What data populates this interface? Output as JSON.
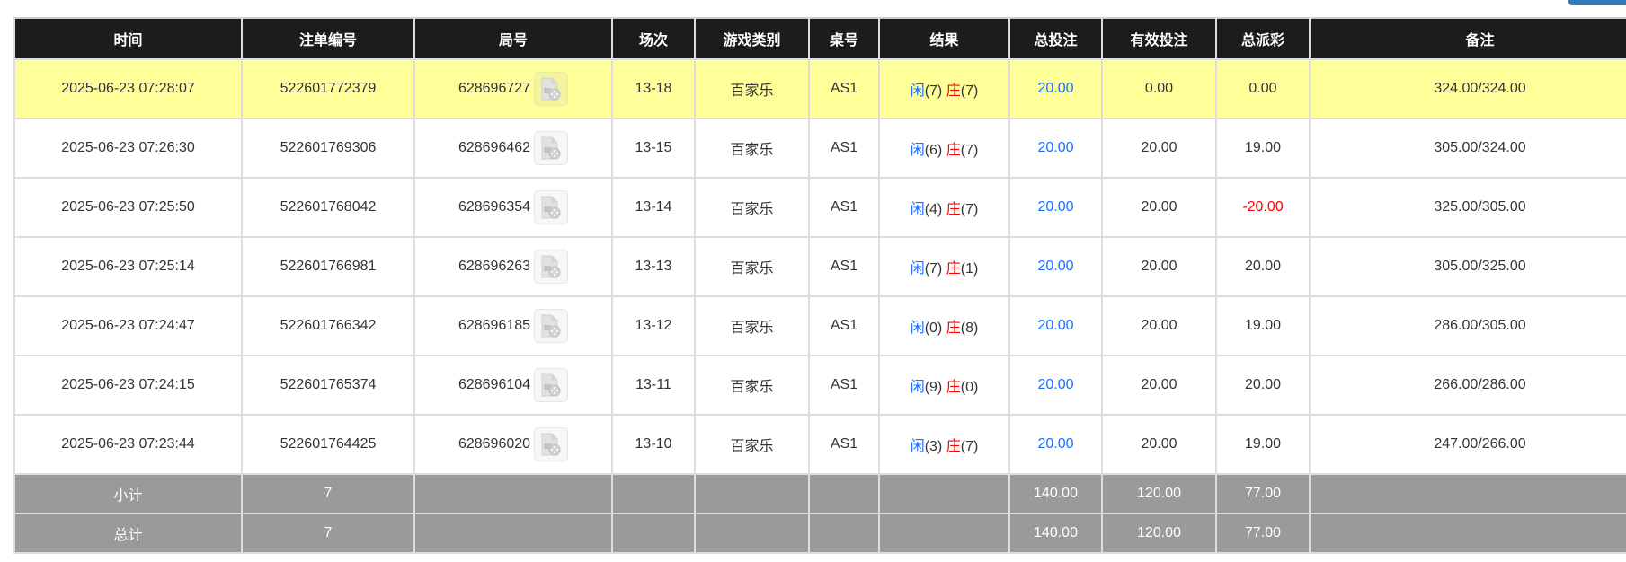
{
  "headers": [
    "时间",
    "注单编号",
    "局号",
    "场次",
    "游戏类别",
    "桌号",
    "结果",
    "总投注",
    "有效投注",
    "总派彩",
    "备注"
  ],
  "rows": [
    {
      "time": "2025-06-23 07:28:07",
      "bet_id": "522601772379",
      "round": "628696727",
      "session": "13-18",
      "game": "百家乐",
      "table": "AS1",
      "player_label": "闲",
      "player_score": "(7)",
      "banker_label": "庄",
      "banker_score": "(7)",
      "total_bet": "20.00",
      "valid_bet": "0.00",
      "payout": "0.00",
      "note": "324.00/324.00",
      "highlighted": true
    },
    {
      "time": "2025-06-23 07:26:30",
      "bet_id": "522601769306",
      "round": "628696462",
      "session": "13-15",
      "game": "百家乐",
      "table": "AS1",
      "player_label": "闲",
      "player_score": "(6)",
      "banker_label": "庄",
      "banker_score": "(7)",
      "total_bet": "20.00",
      "valid_bet": "20.00",
      "payout": "19.00",
      "note": "305.00/324.00"
    },
    {
      "time": "2025-06-23 07:25:50",
      "bet_id": "522601768042",
      "round": "628696354",
      "session": "13-14",
      "game": "百家乐",
      "table": "AS1",
      "player_label": "闲",
      "player_score": "(4)",
      "banker_label": "庄",
      "banker_score": "(7)",
      "total_bet": "20.00",
      "valid_bet": "20.00",
      "payout": "-20.00",
      "note": "325.00/305.00",
      "payout_negative": true
    },
    {
      "time": "2025-06-23 07:25:14",
      "bet_id": "522601766981",
      "round": "628696263",
      "session": "13-13",
      "game": "百家乐",
      "table": "AS1",
      "player_label": "闲",
      "player_score": "(7)",
      "banker_label": "庄",
      "banker_score": "(1)",
      "total_bet": "20.00",
      "valid_bet": "20.00",
      "payout": "20.00",
      "note": "305.00/325.00"
    },
    {
      "time": "2025-06-23 07:24:47",
      "bet_id": "522601766342",
      "round": "628696185",
      "session": "13-12",
      "game": "百家乐",
      "table": "AS1",
      "player_label": "闲",
      "player_score": "(0)",
      "banker_label": "庄",
      "banker_score": "(8)",
      "total_bet": "20.00",
      "valid_bet": "20.00",
      "payout": "19.00",
      "note": "286.00/305.00"
    },
    {
      "time": "2025-06-23 07:24:15",
      "bet_id": "522601765374",
      "round": "628696104",
      "session": "13-11",
      "game": "百家乐",
      "table": "AS1",
      "player_label": "闲",
      "player_score": "(9)",
      "banker_label": "庄",
      "banker_score": "(0)",
      "total_bet": "20.00",
      "valid_bet": "20.00",
      "payout": "20.00",
      "note": "266.00/286.00"
    },
    {
      "time": "2025-06-23 07:23:44",
      "bet_id": "522601764425",
      "round": "628696020",
      "session": "13-10",
      "game": "百家乐",
      "table": "AS1",
      "player_label": "闲",
      "player_score": "(3)",
      "banker_label": "庄",
      "banker_score": "(7)",
      "total_bet": "20.00",
      "valid_bet": "20.00",
      "payout": "19.00",
      "note": "247.00/266.00"
    }
  ],
  "subtotal": {
    "label": "小计",
    "count": "7",
    "total_bet": "140.00",
    "valid_bet": "120.00",
    "payout": "77.00"
  },
  "total": {
    "label": "总计",
    "count": "7",
    "total_bet": "140.00",
    "valid_bet": "120.00",
    "payout": "77.00"
  },
  "colors": {
    "header_bg": "#1c1c1c",
    "highlight_row": "#ffff99",
    "summary_bg": "#9a9a9a",
    "player_blue": "#1a6dff",
    "banker_red": "#ff0000",
    "button_blue": "#337ab7"
  },
  "icons": {
    "replay": "file-video-icon"
  }
}
